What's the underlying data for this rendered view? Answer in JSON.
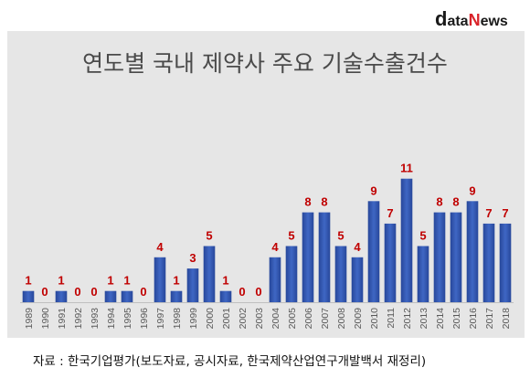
{
  "logo": {
    "text_main": "data",
    "text_brand": "news",
    "color_main": "#1a1a1a",
    "color_brand": "#d9232a"
  },
  "colors": {
    "panel": "#e6e6e6",
    "bar": "#3f67c4",
    "bar_dark": "#27479a",
    "data_label": "#c00000",
    "tick_label": "#595959",
    "axis": "#bfbfbf"
  },
  "source_text": "자료 : 한국기업평가(보도자료, 공시자료, 한국제약산업연구개발백서 재정리)",
  "chart_data": {
    "type": "bar",
    "title": "연도별 국내 제약사 주요 기술수출건수",
    "xlabel": "",
    "ylabel": "",
    "ylim": [
      0,
      12
    ],
    "grid": false,
    "legend": "none",
    "categories": [
      "1989",
      "1990",
      "1991",
      "1992",
      "1993",
      "1994",
      "1995",
      "1996",
      "1997",
      "1998",
      "1999",
      "2000",
      "2001",
      "2002",
      "2003",
      "2004",
      "2005",
      "2006",
      "2007",
      "2008",
      "2009",
      "2010",
      "2011",
      "2012",
      "2013",
      "2014",
      "2015",
      "2016",
      "2017",
      "2018"
    ],
    "values": [
      1,
      0,
      1,
      0,
      0,
      1,
      1,
      0,
      4,
      1,
      3,
      5,
      1,
      0,
      0,
      4,
      5,
      8,
      8,
      5,
      4,
      9,
      7,
      11,
      5,
      8,
      8,
      9,
      7,
      7
    ],
    "data_labels": [
      "1",
      "0",
      "1",
      "0",
      "0",
      "1",
      "1",
      "0",
      "4",
      "1",
      "3",
      "5",
      "1",
      "0",
      "0",
      "4",
      "5",
      "8",
      "8",
      "5",
      "4",
      "9",
      "7",
      "11",
      "5",
      "8",
      "8",
      "9",
      "7",
      "7"
    ]
  }
}
